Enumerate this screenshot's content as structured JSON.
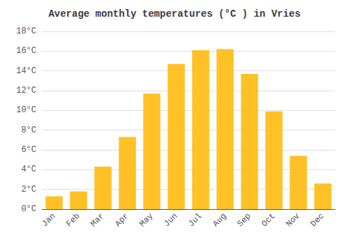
{
  "chart_data": {
    "type": "bar",
    "title": "Average monthly temperatures (°C ) in Vries",
    "categories": [
      "Jan",
      "Feb",
      "Mar",
      "Apr",
      "May",
      "Jun",
      "Jul",
      "Aug",
      "Sep",
      "Oct",
      "Nov",
      "Dec"
    ],
    "values": [
      1.3,
      1.8,
      4.3,
      7.3,
      11.7,
      14.7,
      16.1,
      16.2,
      13.7,
      9.9,
      5.4,
      2.6
    ],
    "color": "#FFC125",
    "ylim": [
      0,
      18
    ],
    "yticks": [
      {
        "value": 0,
        "label": "0°C"
      },
      {
        "value": 2,
        "label": "2°C"
      },
      {
        "value": 4,
        "label": "4°C"
      },
      {
        "value": 6,
        "label": "6°C"
      },
      {
        "value": 8,
        "label": "8°C"
      },
      {
        "value": 10,
        "label": "10°C"
      },
      {
        "value": 12,
        "label": "12°C"
      },
      {
        "value": 14,
        "label": "14°C"
      },
      {
        "value": 16,
        "label": "16°C"
      },
      {
        "value": 18,
        "label": "18°C"
      }
    ],
    "grid": true
  }
}
